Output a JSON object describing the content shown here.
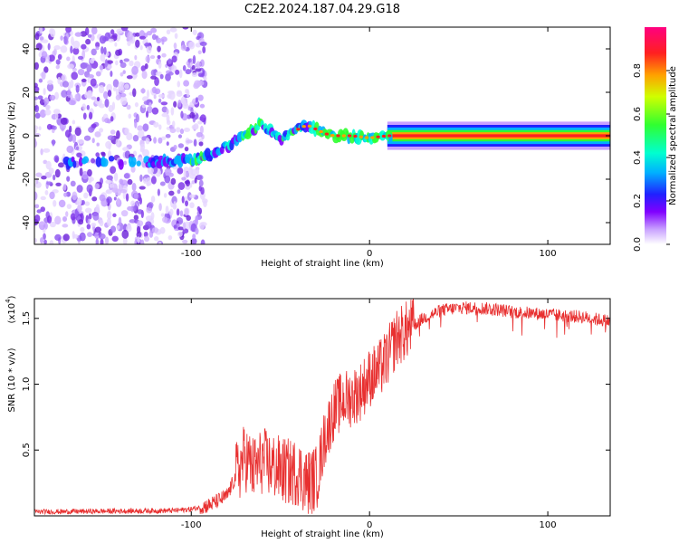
{
  "title": "C2E2.2024.187.04.29.G18",
  "chart_data": [
    {
      "type": "heatmap",
      "name": "spectrogram",
      "xlabel": "Height of straight line (km)",
      "ylabel": "Frequency (Hz)",
      "xlim": [
        -188,
        135
      ],
      "ylim": [
        -50,
        50
      ],
      "xticks": [
        -100,
        0,
        100
      ],
      "xtick_labels": [
        "-100",
        "0",
        "100"
      ],
      "yticks": [
        -40,
        -20,
        0,
        20,
        40
      ],
      "ytick_labels": [
        "-40",
        "-20",
        "0",
        "20",
        "40"
      ],
      "noise_region_x": [
        -188,
        -100
      ],
      "signal_track": {
        "x": [
          -170,
          -150,
          -120,
          -100,
          -90,
          -80,
          -70,
          -62,
          -55,
          -50,
          -45,
          -40,
          -35,
          -30,
          -25,
          -20,
          -10,
          0,
          10,
          20,
          50,
          90,
          134
        ],
        "frequency": [
          -12,
          -12,
          -12,
          -11,
          -9,
          -5,
          0,
          5,
          2,
          -2,
          1,
          3,
          5,
          3,
          1,
          0,
          0,
          -1,
          0,
          0,
          0,
          0,
          0
        ]
      },
      "colorbar": {
        "label": "Normalized spectral amplitude",
        "range": [
          0.0,
          1.0
        ],
        "ticks": [
          0.0,
          0.2,
          0.4,
          0.6,
          0.8
        ],
        "tick_labels": [
          "0.0",
          "0.2",
          "0.4",
          "0.6",
          "0.8"
        ]
      }
    },
    {
      "type": "line",
      "name": "snr",
      "xlabel": "Height of straight line (km)",
      "ylabel": "SNR (10 * v/v)",
      "scale_label": "(x10",
      "scale_exp": "4",
      "scale_close": ")",
      "color": "#e83030",
      "xlim": [
        -188,
        135
      ],
      "ylim": [
        0,
        16500
      ],
      "xticks": [
        -100,
        0,
        100
      ],
      "xtick_labels": [
        "-100",
        "0",
        "100"
      ],
      "yticks": [
        5000,
        10000,
        15000
      ],
      "ytick_labels": [
        "0.5",
        "1.0",
        "1.5"
      ],
      "series": [
        {
          "name": "SNR",
          "x": [
            -188,
            -150,
            -110,
            -100,
            -90,
            -80,
            -75,
            -70,
            -65,
            -60,
            -55,
            -50,
            -45,
            -40,
            -35,
            -30,
            -28,
            -25,
            -20,
            -15,
            -10,
            -5,
            0,
            5,
            10,
            15,
            20,
            25,
            30,
            40,
            50,
            60,
            70,
            80,
            90,
            100,
            110,
            120,
            134
          ],
          "y": [
            300,
            350,
            400,
            500,
            800,
            1500,
            3000,
            4500,
            3500,
            4200,
            3800,
            3500,
            3300,
            3300,
            2500,
            2800,
            4000,
            6000,
            8000,
            8800,
            9000,
            9500,
            10500,
            11000,
            12000,
            13500,
            14000,
            14500,
            15000,
            15600,
            15800,
            15800,
            15700,
            15500,
            15400,
            15300,
            15200,
            15100,
            14800
          ]
        }
      ]
    }
  ]
}
